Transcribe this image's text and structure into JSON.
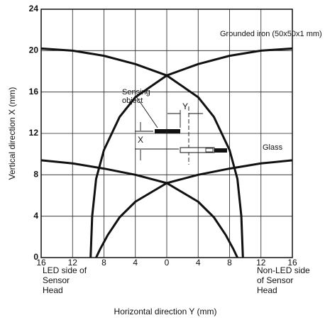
{
  "chart_data": {
    "type": "line",
    "x_label": "Horizontal direction Y (mm)",
    "y_label": "Vertical direction X (mm)",
    "xlim": [
      -16,
      16
    ],
    "ylim": [
      0,
      24
    ],
    "xticks": [
      {
        "value": -16,
        "label": "16"
      },
      {
        "value": -12,
        "label": "12"
      },
      {
        "value": -8,
        "label": "8"
      },
      {
        "value": -4,
        "label": "4"
      },
      0,
      4,
      8,
      12,
      16
    ],
    "yticks": [
      0,
      4,
      8,
      12,
      16,
      20,
      24
    ],
    "grid": true,
    "series": [
      {
        "color": "#111111",
        "x": [
          -16,
          -12,
          -8,
          -4,
          0,
          4,
          6,
          8,
          9,
          9.5,
          9.7
        ],
        "values": [
          20.2,
          20,
          19.5,
          18.7,
          17.6,
          15.5,
          13.6,
          10.4,
          7.6,
          4,
          0
        ]
      },
      {
        "color": "#111111",
        "x": [
          16,
          12,
          8,
          4,
          0,
          -4,
          -6,
          -8,
          -9,
          -9.5,
          -9.7
        ],
        "values": [
          20.2,
          20,
          19.5,
          18.7,
          17.6,
          15.5,
          13.6,
          10.4,
          7.6,
          4,
          0
        ]
      },
      {
        "color": "#111111",
        "x": [
          -16,
          -12,
          -8,
          -4,
          0,
          4,
          6,
          7.5,
          8.5,
          9
        ],
        "values": [
          9.4,
          9.1,
          8.6,
          8,
          7.2,
          5.4,
          3.9,
          2.2,
          0.8,
          0
        ]
      },
      {
        "color": "#111111",
        "x": [
          16,
          12,
          8,
          4,
          0,
          -4,
          -6,
          -7.5,
          -8.5,
          -9
        ],
        "values": [
          9.4,
          9.1,
          8.6,
          8,
          7.2,
          5.4,
          3.9,
          2.2,
          0.8,
          0
        ]
      }
    ],
    "annotations": [
      "Grounded iron (50x50x1 mm)",
      "Glass",
      "Sensing",
      "object",
      "X",
      "Y"
    ],
    "left_side_label": [
      "LED side of",
      "Sensor",
      "Head"
    ],
    "right_side_label": [
      "Non-LED side",
      "of Sensor",
      "Head"
    ]
  }
}
